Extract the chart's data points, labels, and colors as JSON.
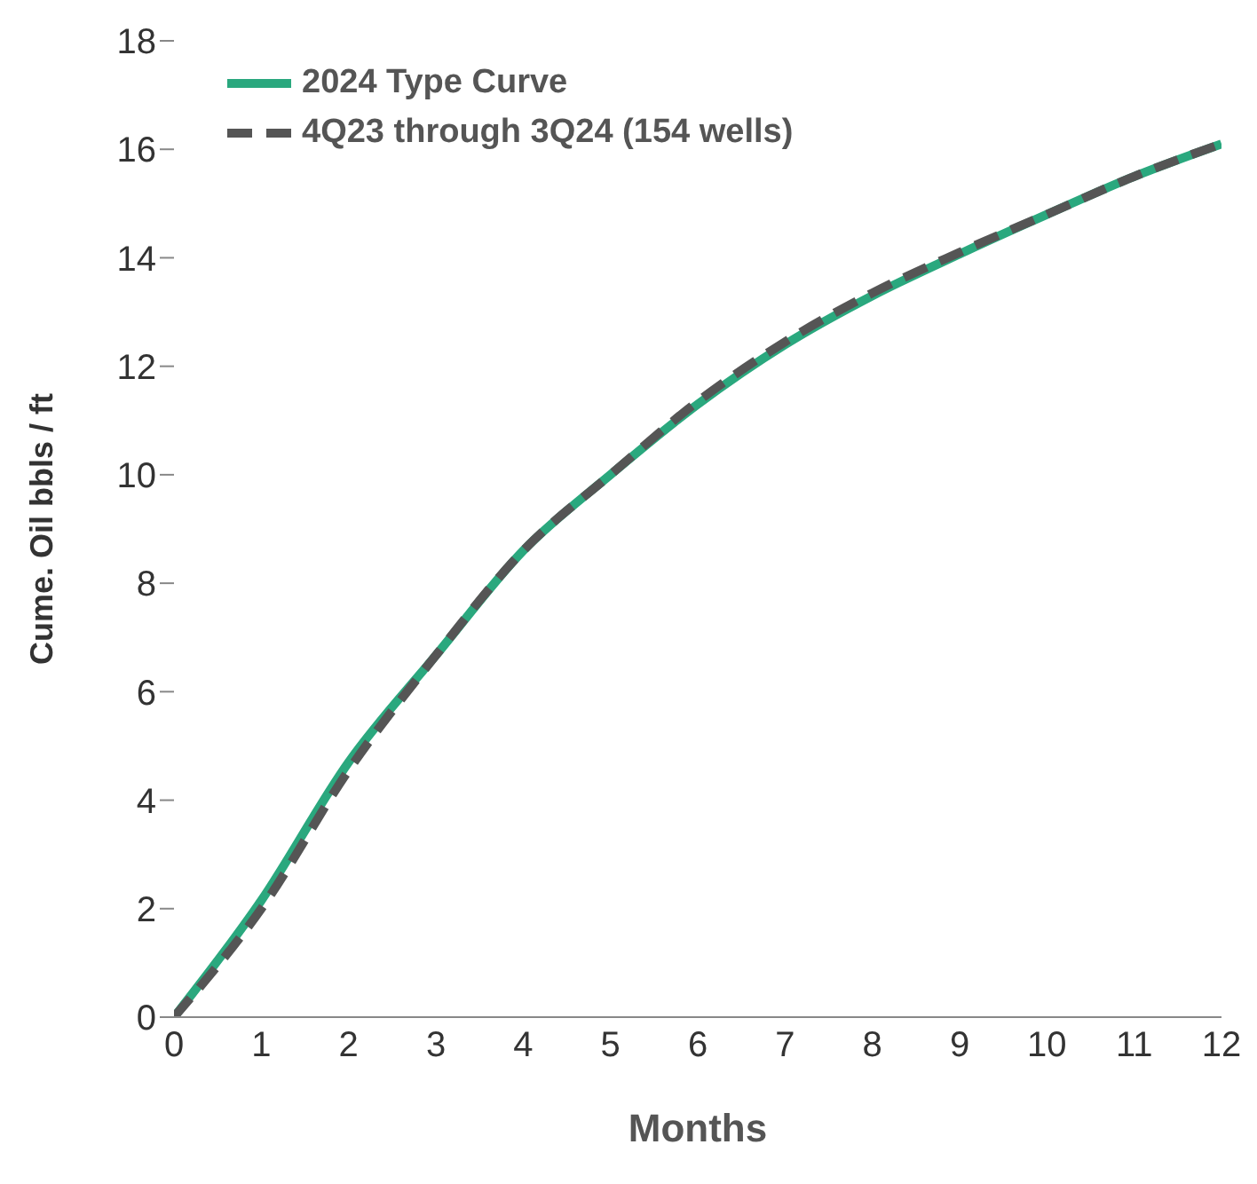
{
  "chart_data": {
    "type": "line",
    "xlabel": "Months",
    "ylabel": "Cume. Oil bbls / ft",
    "x": [
      0,
      1,
      2,
      3,
      4,
      5,
      6,
      7,
      8,
      9,
      10,
      11,
      12
    ],
    "series": [
      {
        "name": "2024 Type Curve",
        "color": "#2aa87e",
        "line_style": "solid",
        "values": [
          0,
          2.15,
          4.7,
          6.67,
          8.6,
          10.0,
          11.3,
          12.4,
          13.3,
          14.07,
          14.8,
          15.5,
          16.1
        ]
      },
      {
        "name": "4Q23 through 3Q24 (154 wells)",
        "color": "#555555",
        "line_style": "dashed",
        "values": [
          0,
          2.0,
          4.55,
          6.67,
          8.6,
          10.0,
          11.35,
          12.45,
          13.35,
          14.1,
          14.8,
          15.5,
          16.1
        ]
      }
    ],
    "xlim": [
      0,
      12
    ],
    "xticks": [
      0,
      1,
      2,
      3,
      4,
      5,
      6,
      7,
      8,
      9,
      10,
      11,
      12
    ],
    "ylim": [
      0,
      18
    ],
    "yticks": [
      0,
      2,
      4,
      6,
      8,
      10,
      12,
      14,
      16,
      18
    ],
    "grid": false,
    "legend": "top left",
    "marker": "none"
  }
}
